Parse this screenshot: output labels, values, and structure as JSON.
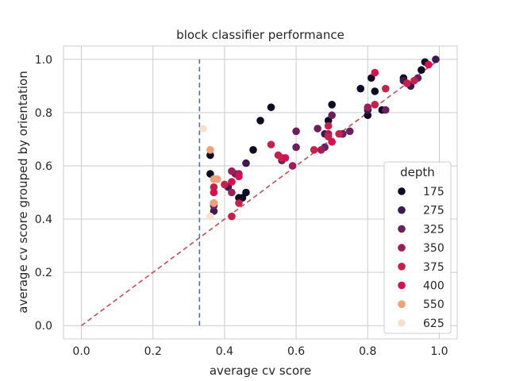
{
  "chart_data": {
    "type": "scatter",
    "title": "block classifier performance",
    "xlabel": "average cv score",
    "ylabel": "average cv score grouped by orientation",
    "xlim": [
      -0.05,
      1.05
    ],
    "ylim": [
      -0.05,
      1.05
    ],
    "xticks": [
      "0.0",
      "0.2",
      "0.4",
      "0.6",
      "0.8",
      "1.0"
    ],
    "yticks": [
      "0.0",
      "0.2",
      "0.4",
      "0.6",
      "0.8",
      "1.0"
    ],
    "grid": true,
    "legend_title": "depth",
    "legend_position": "lower-right",
    "reference_lines": [
      {
        "kind": "diagonal",
        "from": [
          0,
          0
        ],
        "to": [
          1,
          1
        ],
        "style": "dashed",
        "color": "#c44e52"
      },
      {
        "kind": "vertical",
        "x": 0.33,
        "from_y": 0,
        "to_y": 1,
        "style": "dashed",
        "color": "#4c72b0"
      }
    ],
    "series": [
      {
        "name": "175",
        "color": "#0e0b24",
        "points": [
          [
            0.36,
            0.64
          ],
          [
            0.36,
            0.57
          ],
          [
            0.37,
            0.46
          ],
          [
            0.44,
            0.48
          ],
          [
            0.45,
            0.48
          ],
          [
            0.46,
            0.5
          ],
          [
            0.48,
            0.66
          ],
          [
            0.5,
            0.77
          ],
          [
            0.53,
            0.82
          ],
          [
            0.69,
            0.77
          ],
          [
            0.7,
            0.83
          ],
          [
            0.78,
            0.89
          ],
          [
            0.8,
            0.79
          ],
          [
            0.81,
            0.93
          ],
          [
            0.82,
            0.88
          ],
          [
            0.84,
            0.81
          ],
          [
            0.9,
            0.93
          ],
          [
            0.95,
            0.96
          ],
          [
            0.96,
            0.99
          ]
        ]
      },
      {
        "name": "275",
        "color": "#3d1a4f",
        "points": [
          [
            0.37,
            0.43
          ],
          [
            0.41,
            0.52
          ],
          [
            0.46,
            0.61
          ],
          [
            0.68,
            0.72
          ],
          [
            0.73,
            0.72
          ],
          [
            0.8,
            0.81
          ],
          [
            0.9,
            0.92
          ],
          [
            0.92,
            0.9
          ],
          [
            0.99,
            1.0
          ]
        ]
      },
      {
        "name": "325",
        "color": "#6b1f5d",
        "points": [
          [
            0.37,
            0.45
          ],
          [
            0.43,
            0.57
          ],
          [
            0.56,
            0.62
          ],
          [
            0.6,
            0.73
          ],
          [
            0.6,
            0.67
          ],
          [
            0.66,
            0.74
          ],
          [
            0.68,
            0.67
          ],
          [
            0.7,
            0.79
          ],
          [
            0.73,
            0.72
          ],
          [
            0.75,
            0.73
          ],
          [
            0.85,
            0.81
          ],
          [
            0.94,
            0.93
          ]
        ]
      },
      {
        "name": "350",
        "color": "#9c1f5a",
        "points": [
          [
            0.42,
            0.58
          ],
          [
            0.42,
            0.5
          ],
          [
            0.44,
            0.57
          ],
          [
            0.59,
            0.6
          ],
          [
            0.67,
            0.66
          ],
          [
            0.69,
            0.72
          ],
          [
            0.8,
            0.82
          ],
          [
            0.91,
            0.91
          ]
        ]
      },
      {
        "name": "375",
        "color": "#c4214d",
        "points": [
          [
            0.37,
            0.52
          ],
          [
            0.4,
            0.53
          ],
          [
            0.42,
            0.41
          ],
          [
            0.44,
            0.46
          ],
          [
            0.53,
            0.68
          ],
          [
            0.55,
            0.64
          ],
          [
            0.56,
            0.63
          ],
          [
            0.65,
            0.66
          ],
          [
            0.69,
            0.75
          ],
          [
            0.69,
            0.71
          ],
          [
            0.72,
            0.72
          ],
          [
            0.82,
            0.83
          ],
          [
            0.85,
            0.89
          ],
          [
            0.91,
            0.91
          ],
          [
            0.93,
            0.92
          ]
        ]
      },
      {
        "name": "400",
        "color": "#d7114f",
        "points": [
          [
            0.37,
            0.5
          ],
          [
            0.42,
            0.54
          ],
          [
            0.44,
            0.56
          ],
          [
            0.57,
            0.63
          ],
          [
            0.7,
            0.69
          ],
          [
            0.82,
            0.95
          ],
          [
            0.97,
            0.98
          ]
        ]
      },
      {
        "name": "550",
        "color": "#f0a07a",
        "points": [
          [
            0.36,
            0.66
          ],
          [
            0.37,
            0.55
          ],
          [
            0.38,
            0.55
          ],
          [
            0.37,
            0.46
          ],
          [
            0.37,
            0.55
          ]
        ]
      },
      {
        "name": "625",
        "color": "#f8e0d0",
        "points": [
          [
            0.34,
            0.74
          ],
          [
            0.36,
            0.41
          ]
        ]
      }
    ]
  }
}
